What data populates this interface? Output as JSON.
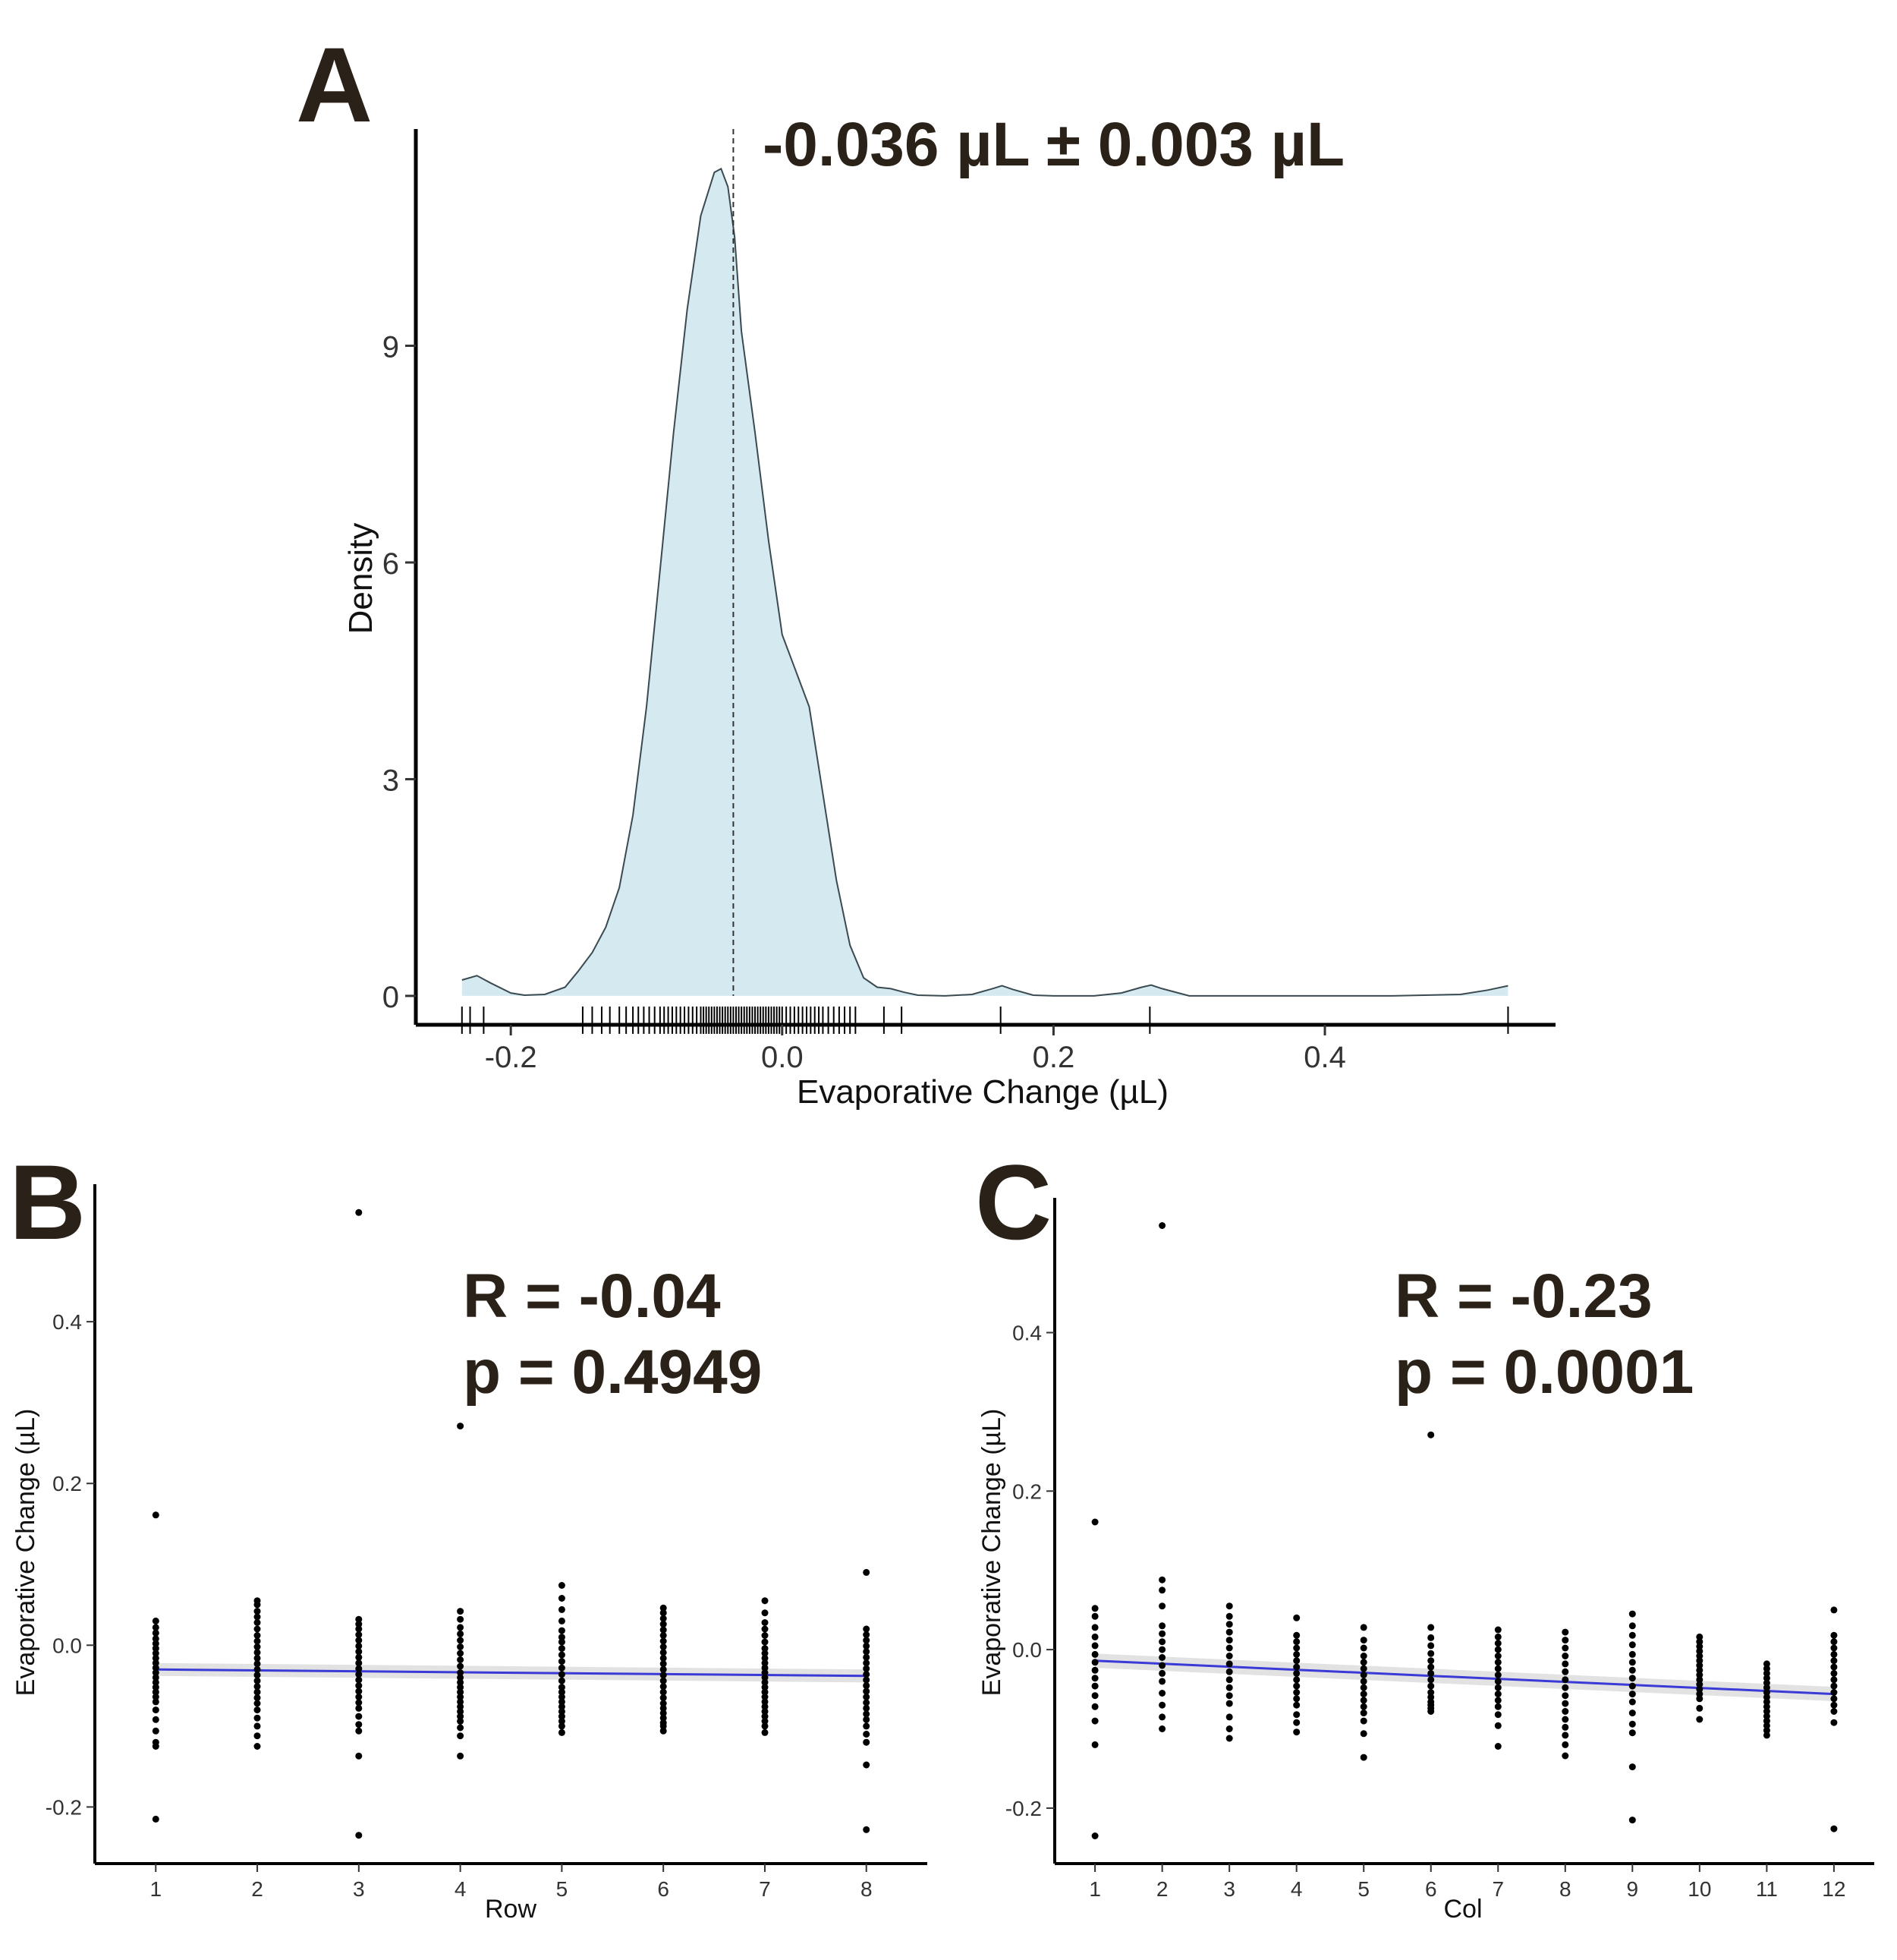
{
  "figure": {
    "panels": [
      "A",
      "B",
      "C"
    ]
  },
  "colors": {
    "density_fill": "#d5e9f1",
    "density_line": "#3a4a50",
    "fit_line": "#3a3ad6",
    "ci_band": "#e2e2e2",
    "points": "#000000",
    "letter": "#2a2118"
  },
  "chart_data": [
    {
      "panel": "A",
      "type": "area",
      "title": "",
      "annotation": "-0.036 µL ± 0.003 µL",
      "xlabel": "Evaporative Change (µL)",
      "ylabel": "Density",
      "xlim": [
        -0.27,
        0.57
      ],
      "ylim": [
        -0.4,
        12.0
      ],
      "xticks": [
        -0.2,
        0.0,
        0.2,
        0.4
      ],
      "xtick_labels": [
        "-0.2",
        "0.0",
        "0.2",
        "0.4"
      ],
      "yticks": [
        0,
        3,
        6,
        9
      ],
      "ytick_labels": [
        "0",
        "3",
        "6",
        "9"
      ],
      "mean_line": -0.036,
      "density_x": [
        -0.236,
        -0.225,
        -0.215,
        -0.2,
        -0.19,
        -0.175,
        -0.16,
        -0.15,
        -0.14,
        -0.13,
        -0.12,
        -0.11,
        -0.1,
        -0.09,
        -0.08,
        -0.07,
        -0.06,
        -0.05,
        -0.045,
        -0.04,
        -0.035,
        -0.03,
        -0.02,
        -0.01,
        0.0,
        0.01,
        0.02,
        0.03,
        0.04,
        0.05,
        0.06,
        0.07,
        0.08,
        0.09,
        0.1,
        0.12,
        0.14,
        0.155,
        0.162,
        0.17,
        0.185,
        0.2,
        0.23,
        0.25,
        0.265,
        0.272,
        0.28,
        0.3,
        0.35,
        0.4,
        0.45,
        0.5,
        0.52,
        0.535
      ],
      "density_y": [
        0.22,
        0.28,
        0.18,
        0.04,
        0.01,
        0.02,
        0.12,
        0.35,
        0.6,
        0.95,
        1.5,
        2.5,
        4.0,
        5.9,
        7.8,
        9.5,
        10.8,
        11.4,
        11.45,
        11.2,
        10.5,
        9.2,
        7.8,
        6.3,
        5.0,
        4.5,
        4.0,
        2.8,
        1.6,
        0.7,
        0.25,
        0.12,
        0.1,
        0.05,
        0.01,
        0.0,
        0.02,
        0.1,
        0.14,
        0.09,
        0.01,
        0.0,
        0.0,
        0.04,
        0.12,
        0.15,
        0.1,
        0.0,
        0.0,
        0.0,
        0.0,
        0.02,
        0.08,
        0.14
      ],
      "rug": [
        -0.236,
        -0.23,
        -0.22,
        -0.147,
        -0.14,
        -0.133,
        -0.127,
        -0.12,
        -0.115,
        -0.11,
        -0.106,
        -0.102,
        -0.098,
        -0.094,
        -0.09,
        -0.087,
        -0.084,
        -0.081,
        -0.078,
        -0.075,
        -0.072,
        -0.069,
        -0.066,
        -0.063,
        -0.06,
        -0.058,
        -0.056,
        -0.054,
        -0.052,
        -0.05,
        -0.048,
        -0.046,
        -0.044,
        -0.042,
        -0.04,
        -0.038,
        -0.036,
        -0.034,
        -0.032,
        -0.03,
        -0.028,
        -0.026,
        -0.024,
        -0.022,
        -0.02,
        -0.018,
        -0.016,
        -0.014,
        -0.012,
        -0.01,
        -0.008,
        -0.006,
        -0.004,
        -0.002,
        0.0,
        0.003,
        0.006,
        0.009,
        0.012,
        0.015,
        0.018,
        0.021,
        0.024,
        0.027,
        0.03,
        0.034,
        0.038,
        0.042,
        0.046,
        0.05,
        0.054,
        0.075,
        0.088,
        0.161,
        0.271,
        0.535
      ]
    },
    {
      "panel": "B",
      "type": "scatter",
      "annotation_lines": [
        "R = -0.04",
        "p = 0.4949"
      ],
      "xlabel": "Row",
      "ylabel": "Evaporative Change (µL)",
      "xlim": [
        0.4,
        8.6
      ],
      "ylim": [
        -0.27,
        0.57
      ],
      "xticks": [
        1,
        2,
        3,
        4,
        5,
        6,
        7,
        8
      ],
      "xtick_labels": [
        "1",
        "2",
        "3",
        "4",
        "5",
        "6",
        "7",
        "8"
      ],
      "yticks": [
        -0.2,
        0.0,
        0.2,
        0.4
      ],
      "ytick_labels": [
        "-0.2",
        "0.0",
        "0.2",
        "0.4"
      ],
      "fit": {
        "x": [
          1,
          8
        ],
        "y": [
          -0.03,
          -0.038
        ],
        "ci": 0.008
      },
      "points": {
        "x": [
          1,
          1,
          1,
          1,
          1,
          1,
          1,
          1,
          1,
          1,
          1,
          1,
          1,
          1,
          1,
          1,
          1,
          1,
          1,
          1,
          1,
          1,
          1,
          1,
          2,
          2,
          2,
          2,
          2,
          2,
          2,
          2,
          2,
          2,
          2,
          2,
          2,
          2,
          2,
          2,
          2,
          2,
          2,
          2,
          2,
          2,
          2,
          2,
          3,
          3,
          3,
          3,
          3,
          3,
          3,
          3,
          3,
          3,
          3,
          3,
          3,
          3,
          3,
          3,
          3,
          3,
          3,
          3,
          3,
          3,
          3,
          4,
          4,
          4,
          4,
          4,
          4,
          4,
          4,
          4,
          4,
          4,
          4,
          4,
          4,
          4,
          4,
          4,
          4,
          4,
          4,
          4,
          4,
          4,
          4,
          5,
          5,
          5,
          5,
          5,
          5,
          5,
          5,
          5,
          5,
          5,
          5,
          5,
          5,
          5,
          5,
          5,
          5,
          5,
          5,
          5,
          5,
          5,
          6,
          6,
          6,
          6,
          6,
          6,
          6,
          6,
          6,
          6,
          6,
          6,
          6,
          6,
          6,
          6,
          6,
          6,
          6,
          6,
          6,
          6,
          6,
          6,
          7,
          7,
          7,
          7,
          7,
          7,
          7,
          7,
          7,
          7,
          7,
          7,
          7,
          7,
          7,
          7,
          7,
          7,
          7,
          7,
          7,
          7,
          7,
          7,
          8,
          8,
          8,
          8,
          8,
          8,
          8,
          8,
          8,
          8,
          8,
          8,
          8,
          8,
          8,
          8,
          8,
          8,
          8,
          8,
          8,
          8,
          8
        ],
        "y": [
          0.161,
          0.03,
          0.022,
          0.015,
          0.008,
          0.002,
          -0.004,
          -0.01,
          -0.016,
          -0.022,
          -0.028,
          -0.034,
          -0.04,
          -0.046,
          -0.052,
          -0.058,
          -0.064,
          -0.07,
          -0.08,
          -0.092,
          -0.106,
          -0.12,
          -0.125,
          -0.215,
          0.055,
          0.05,
          0.042,
          0.035,
          0.028,
          0.02,
          0.012,
          0.005,
          -0.002,
          -0.009,
          -0.016,
          -0.023,
          -0.03,
          -0.037,
          -0.044,
          -0.051,
          -0.058,
          -0.065,
          -0.072,
          -0.08,
          -0.09,
          -0.1,
          -0.112,
          -0.125,
          0.535,
          0.032,
          0.026,
          0.02,
          0.013,
          0.006,
          -0.001,
          -0.008,
          -0.015,
          -0.022,
          -0.029,
          -0.036,
          -0.043,
          -0.05,
          -0.057,
          -0.064,
          -0.071,
          -0.078,
          -0.088,
          -0.098,
          -0.106,
          -0.137,
          -0.235,
          0.271,
          0.042,
          0.032,
          0.022,
          0.014,
          0.006,
          -0.002,
          -0.01,
          -0.018,
          -0.026,
          -0.034,
          -0.04,
          -0.046,
          -0.052,
          -0.058,
          -0.064,
          -0.07,
          -0.076,
          -0.082,
          -0.088,
          -0.094,
          -0.102,
          -0.112,
          -0.137,
          0.074,
          0.058,
          0.044,
          0.03,
          0.018,
          0.01,
          0.004,
          -0.004,
          -0.012,
          -0.02,
          -0.028,
          -0.036,
          -0.044,
          -0.052,
          -0.058,
          -0.064,
          -0.07,
          -0.076,
          -0.082,
          -0.088,
          -0.094,
          -0.1,
          -0.108,
          0.046,
          0.04,
          0.033,
          0.026,
          0.019,
          0.012,
          0.005,
          -0.002,
          -0.009,
          -0.016,
          -0.023,
          -0.03,
          -0.037,
          -0.044,
          -0.051,
          -0.058,
          -0.065,
          -0.072,
          -0.078,
          -0.084,
          -0.09,
          -0.096,
          -0.1,
          -0.106,
          0.055,
          0.04,
          0.028,
          0.02,
          0.012,
          0.004,
          -0.004,
          -0.01,
          -0.016,
          -0.022,
          -0.028,
          -0.034,
          -0.04,
          -0.046,
          -0.052,
          -0.058,
          -0.064,
          -0.07,
          -0.076,
          -0.082,
          -0.088,
          -0.094,
          -0.1,
          -0.108,
          0.09,
          0.02,
          0.013,
          0.006,
          -0.001,
          -0.008,
          -0.015,
          -0.022,
          -0.029,
          -0.036,
          -0.043,
          -0.05,
          -0.057,
          -0.064,
          -0.071,
          -0.078,
          -0.085,
          -0.092,
          -0.1,
          -0.11,
          -0.12,
          -0.148,
          -0.228
        ]
      }
    },
    {
      "panel": "C",
      "type": "scatter",
      "annotation_lines": [
        "R = -0.23",
        "p = 0.0001"
      ],
      "xlabel": "Col",
      "ylabel": "Evaporative Change (µL)",
      "xlim": [
        0.4,
        12.6
      ],
      "ylim": [
        -0.27,
        0.57
      ],
      "xticks": [
        1,
        2,
        3,
        4,
        5,
        6,
        7,
        8,
        9,
        10,
        11,
        12
      ],
      "xtick_labels": [
        "1",
        "2",
        "3",
        "4",
        "5",
        "6",
        "7",
        "8",
        "9",
        "10",
        "11",
        "12"
      ],
      "yticks": [
        -0.2,
        0.0,
        0.2,
        0.4
      ],
      "ytick_labels": [
        "-0.2",
        "0.0",
        "0.2",
        "0.4"
      ],
      "fit": {
        "x": [
          1,
          12
        ],
        "y": [
          -0.014,
          -0.056
        ],
        "ci": 0.009
      },
      "points": {
        "x": [
          1,
          1,
          1,
          1,
          1,
          1,
          1,
          1,
          1,
          1,
          1,
          1,
          1,
          1,
          1,
          1,
          2,
          2,
          2,
          2,
          2,
          2,
          2,
          2,
          2,
          2,
          2,
          2,
          2,
          2,
          2,
          2,
          3,
          3,
          3,
          3,
          3,
          3,
          3,
          3,
          3,
          3,
          3,
          3,
          3,
          3,
          3,
          3,
          4,
          4,
          4,
          4,
          4,
          4,
          4,
          4,
          4,
          4,
          4,
          4,
          4,
          4,
          4,
          4,
          5,
          5,
          5,
          5,
          5,
          5,
          5,
          5,
          5,
          5,
          5,
          5,
          5,
          5,
          5,
          5,
          6,
          6,
          6,
          6,
          6,
          6,
          6,
          6,
          6,
          6,
          6,
          6,
          6,
          6,
          6,
          6,
          7,
          7,
          7,
          7,
          7,
          7,
          7,
          7,
          7,
          7,
          7,
          7,
          7,
          7,
          7,
          7,
          8,
          8,
          8,
          8,
          8,
          8,
          8,
          8,
          8,
          8,
          8,
          8,
          8,
          8,
          8,
          8,
          9,
          9,
          9,
          9,
          9,
          9,
          9,
          9,
          9,
          9,
          9,
          9,
          9,
          9,
          9,
          9,
          10,
          10,
          10,
          10,
          10,
          10,
          10,
          10,
          10,
          10,
          10,
          10,
          10,
          10,
          10,
          10,
          11,
          11,
          11,
          11,
          11,
          11,
          11,
          11,
          11,
          11,
          11,
          11,
          11,
          11,
          11,
          11,
          12,
          12,
          12,
          12,
          12,
          12,
          12,
          12,
          12,
          12,
          12,
          12,
          12,
          12,
          12,
          12
        ],
        "y": [
          0.161,
          0.052,
          0.042,
          0.028,
          0.016,
          0.005,
          -0.006,
          -0.016,
          -0.026,
          -0.036,
          -0.046,
          -0.058,
          -0.072,
          -0.09,
          -0.12,
          -0.235,
          0.535,
          0.088,
          0.075,
          0.055,
          0.03,
          0.02,
          0.01,
          0.0,
          -0.01,
          -0.02,
          -0.03,
          -0.04,
          -0.055,
          -0.07,
          -0.085,
          -0.1,
          0.055,
          0.042,
          0.032,
          0.022,
          0.012,
          0.002,
          -0.008,
          -0.018,
          -0.028,
          -0.038,
          -0.048,
          -0.058,
          -0.068,
          -0.085,
          -0.1,
          -0.112,
          0.04,
          0.018,
          0.01,
          0.002,
          -0.006,
          -0.014,
          -0.022,
          -0.03,
          -0.038,
          -0.046,
          -0.054,
          -0.062,
          -0.07,
          -0.082,
          -0.092,
          -0.104,
          0.028,
          0.012,
          0.002,
          -0.008,
          -0.016,
          -0.024,
          -0.032,
          -0.04,
          -0.048,
          -0.056,
          -0.064,
          -0.072,
          -0.08,
          -0.09,
          -0.106,
          -0.136,
          0.271,
          0.028,
          0.015,
          0.005,
          -0.005,
          -0.014,
          -0.022,
          -0.03,
          -0.038,
          -0.046,
          -0.054,
          -0.06,
          -0.066,
          -0.07,
          -0.074,
          -0.078,
          0.025,
          0.016,
          0.008,
          0.0,
          -0.008,
          -0.016,
          -0.024,
          -0.032,
          -0.04,
          -0.048,
          -0.056,
          -0.064,
          -0.072,
          -0.082,
          -0.096,
          -0.122,
          0.022,
          0.012,
          0.002,
          -0.008,
          -0.018,
          -0.028,
          -0.038,
          -0.048,
          -0.058,
          -0.068,
          -0.078,
          -0.088,
          -0.098,
          -0.108,
          -0.12,
          -0.134,
          0.045,
          0.03,
          0.018,
          0.006,
          -0.006,
          -0.016,
          -0.026,
          -0.036,
          -0.046,
          -0.056,
          -0.066,
          -0.08,
          -0.094,
          -0.105,
          -0.148,
          -0.215,
          0.016,
          0.01,
          0.004,
          -0.002,
          -0.008,
          -0.014,
          -0.02,
          -0.026,
          -0.032,
          -0.038,
          -0.044,
          -0.05,
          -0.056,
          -0.062,
          -0.074,
          -0.088,
          -0.018,
          -0.024,
          -0.03,
          -0.036,
          -0.042,
          -0.048,
          -0.054,
          -0.06,
          -0.066,
          -0.072,
          -0.078,
          -0.084,
          -0.09,
          -0.096,
          -0.102,
          -0.108,
          0.05,
          0.018,
          0.01,
          0.002,
          -0.006,
          -0.014,
          -0.022,
          -0.03,
          -0.038,
          -0.046,
          -0.054,
          -0.062,
          -0.07,
          -0.078,
          -0.092,
          -0.226
        ]
      }
    }
  ]
}
